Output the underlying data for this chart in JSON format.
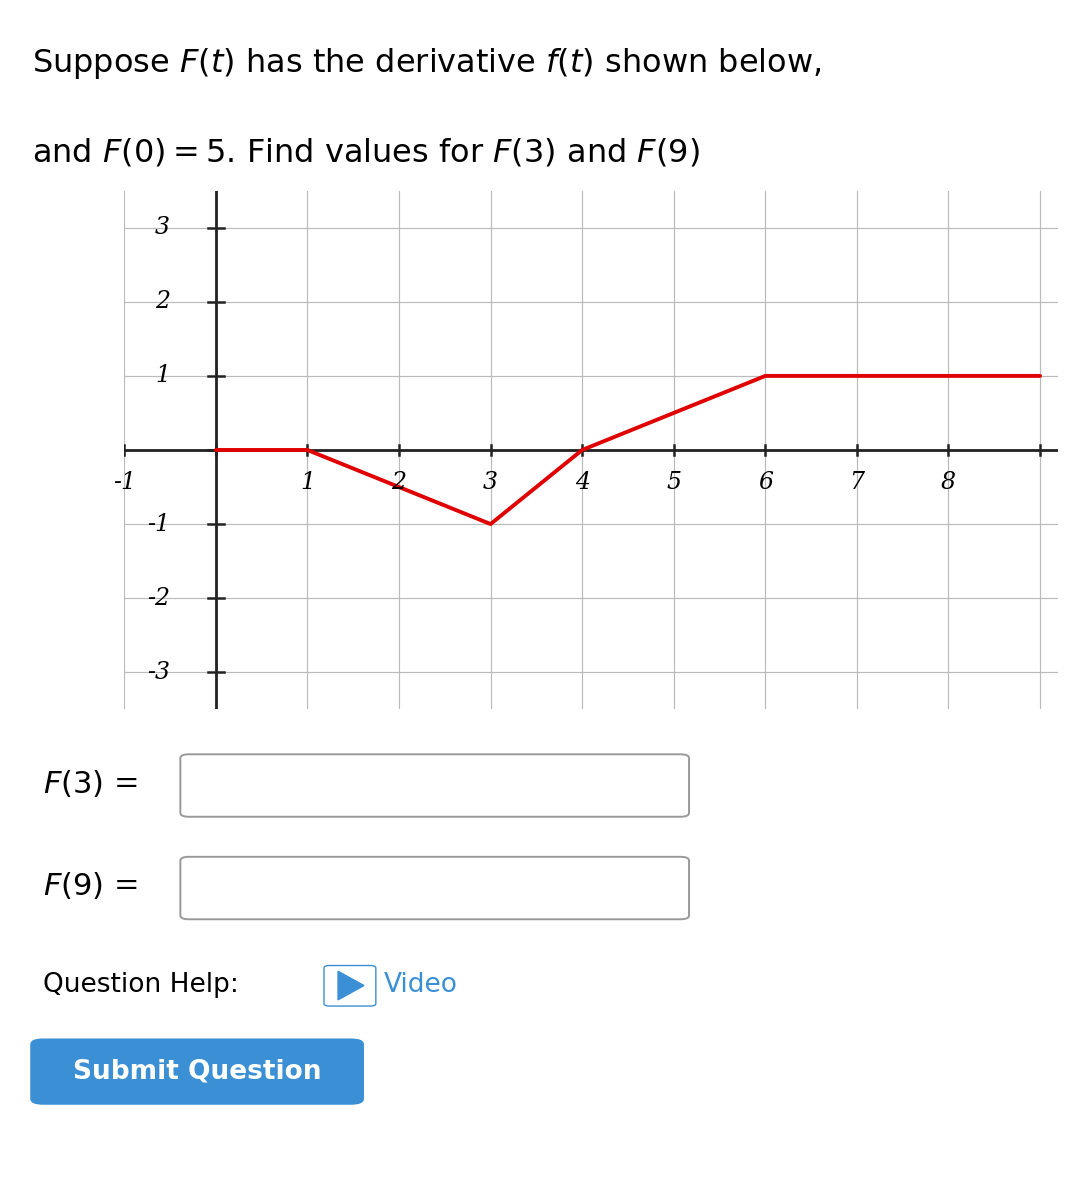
{
  "title_line1": "Suppose $F(t)$ has the derivative $f(t)$ shown below,",
  "title_line2": "and $F(0) = 5$. Find values for $F(3)$ and $F(9)$",
  "line_x": [
    0,
    1,
    3,
    4,
    6,
    9
  ],
  "line_y": [
    0,
    0,
    -1,
    0,
    1,
    1
  ],
  "line_color": "#e00000",
  "line_width": 2.8,
  "xlim": [
    -1.0,
    9.2
  ],
  "ylim": [
    -3.5,
    3.5
  ],
  "xtick_vals": [
    1,
    2,
    3,
    4,
    5,
    6,
    7,
    8
  ],
  "xtick_neg": [
    -1
  ],
  "ytick_vals": [
    3,
    2,
    1,
    -1,
    -2,
    -3
  ],
  "grid_color": "#bbbbbb",
  "grid_linewidth": 0.85,
  "axis_color": "#222222",
  "background_color": "#ffffff",
  "label_F3": "$F(3)$ =",
  "label_F9": "$F(9)$ =",
  "label_question_help": "Question Help:",
  "label_video": "Video",
  "label_submit": "Submit Question",
  "submit_bg": "#3b8fd4",
  "submit_text_color": "#ffffff",
  "title_fontsize": 23,
  "label_fontsize": 22,
  "tick_label_fontsize": 17
}
